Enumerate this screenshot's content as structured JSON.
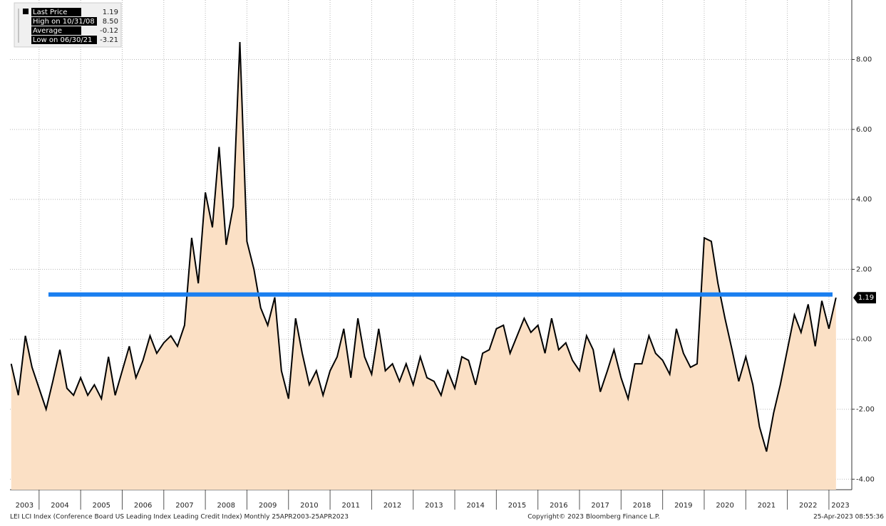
{
  "chart_data": {
    "type": "area",
    "x": [
      2003.33,
      2003.5,
      2003.67,
      2003.83,
      2004,
      2004.17,
      2004.33,
      2004.5,
      2004.67,
      2004.83,
      2005,
      2005.17,
      2005.33,
      2005.5,
      2005.67,
      2005.83,
      2006,
      2006.17,
      2006.33,
      2006.5,
      2006.67,
      2006.83,
      2007,
      2007.17,
      2007.33,
      2007.5,
      2007.67,
      2007.83,
      2008,
      2008.17,
      2008.33,
      2008.5,
      2008.67,
      2008.83,
      2009,
      2009.17,
      2009.33,
      2009.5,
      2009.67,
      2009.83,
      2010,
      2010.17,
      2010.33,
      2010.5,
      2010.67,
      2010.83,
      2011,
      2011.17,
      2011.33,
      2011.5,
      2011.67,
      2011.83,
      2012,
      2012.17,
      2012.33,
      2012.5,
      2012.67,
      2012.83,
      2013,
      2013.17,
      2013.33,
      2013.5,
      2013.67,
      2013.83,
      2014,
      2014.17,
      2014.33,
      2014.5,
      2014.67,
      2014.83,
      2015,
      2015.17,
      2015.33,
      2015.5,
      2015.67,
      2015.83,
      2016,
      2016.17,
      2016.33,
      2016.5,
      2016.67,
      2016.83,
      2017,
      2017.17,
      2017.33,
      2017.5,
      2017.67,
      2017.83,
      2018,
      2018.17,
      2018.33,
      2018.5,
      2018.67,
      2018.83,
      2019,
      2019.17,
      2019.33,
      2019.5,
      2019.67,
      2019.83,
      2020,
      2020.17,
      2020.33,
      2020.5,
      2020.67,
      2020.83,
      2021,
      2021.17,
      2021.33,
      2021.5,
      2021.67,
      2021.83,
      2022,
      2022.17,
      2022.33,
      2022.5,
      2022.67,
      2022.83,
      2023,
      2023.17
    ],
    "series": [
      {
        "name": "Last Price",
        "color": "#000000",
        "fill": "#fbe0c5",
        "values": [
          -0.7,
          -1.6,
          0.1,
          -0.8,
          -1.4,
          -2.0,
          -1.2,
          -0.3,
          -1.4,
          -1.6,
          -1.1,
          -1.6,
          -1.3,
          -1.7,
          -0.5,
          -1.6,
          -0.9,
          -0.2,
          -1.1,
          -0.6,
          0.1,
          -0.4,
          -0.1,
          0.1,
          -0.2,
          0.4,
          2.9,
          1.6,
          4.2,
          3.2,
          5.5,
          2.7,
          3.8,
          8.5,
          2.8,
          2.0,
          0.9,
          0.4,
          1.2,
          -0.9,
          -1.7,
          0.6,
          -0.4,
          -1.3,
          -0.9,
          -1.6,
          -0.9,
          -0.5,
          0.3,
          -1.1,
          0.6,
          -0.5,
          -1.0,
          0.3,
          -0.9,
          -0.7,
          -1.2,
          -0.7,
          -1.3,
          -0.5,
          -1.1,
          -1.2,
          -1.6,
          -0.9,
          -1.4,
          -0.5,
          -0.6,
          -1.3,
          -0.4,
          -0.3,
          0.3,
          0.4,
          -0.4,
          0.1,
          0.6,
          0.2,
          0.4,
          -0.4,
          0.6,
          -0.3,
          -0.1,
          -0.6,
          -0.9,
          0.1,
          -0.3,
          -1.5,
          -0.9,
          -0.3,
          -1.1,
          -1.7,
          -0.7,
          -0.7,
          0.1,
          -0.4,
          -0.6,
          -1.0,
          0.3,
          -0.4,
          -0.8,
          -0.7,
          2.9,
          2.8,
          1.6,
          0.6,
          -0.3,
          -1.2,
          -0.5,
          -1.3,
          -2.5,
          -3.21,
          -2.1,
          -1.3,
          -0.3,
          0.7,
          0.2,
          1.0,
          -0.2,
          1.1,
          0.3,
          1.19
        ]
      }
    ],
    "hline": {
      "value": 1.28,
      "color": "#1a7ff0"
    },
    "last_value_tag": "1.19",
    "legend": [
      {
        "label": "Last Price",
        "value": "1.19"
      },
      {
        "label": "High on 10/31/08",
        "value": "8.50"
      },
      {
        "label": "Average",
        "value": "-0.12"
      },
      {
        "label": "Low on 06/30/21",
        "value": "-3.21"
      }
    ],
    "xlim": [
      2003.3,
      2023.55
    ],
    "xticks": [
      2003,
      2004,
      2005,
      2006,
      2007,
      2008,
      2009,
      2010,
      2011,
      2012,
      2013,
      2014,
      2015,
      2016,
      2017,
      2018,
      2019,
      2020,
      2021,
      2022,
      2023
    ],
    "ylim": [
      -4.3,
      9.7
    ],
    "yticks": [
      {
        "value": 8,
        "label": "8.00"
      },
      {
        "value": 6,
        "label": "6.00"
      },
      {
        "value": 4,
        "label": "4.00"
      },
      {
        "value": 2,
        "label": "2.00"
      },
      {
        "value": 0,
        "label": "0.00"
      },
      {
        "value": -2,
        "label": "-2.00"
      },
      {
        "value": -4,
        "label": "-4.00"
      }
    ],
    "grid": true,
    "footer_left": "LEI LCI Index (Conference Board US Leading Index Leading Credit Index)  Monthly 25APR2003-25APR2023",
    "footer_center": "Copyright© 2023 Bloomberg Finance L.P.",
    "footer_right": "25-Apr-2023 08:55:36"
  }
}
